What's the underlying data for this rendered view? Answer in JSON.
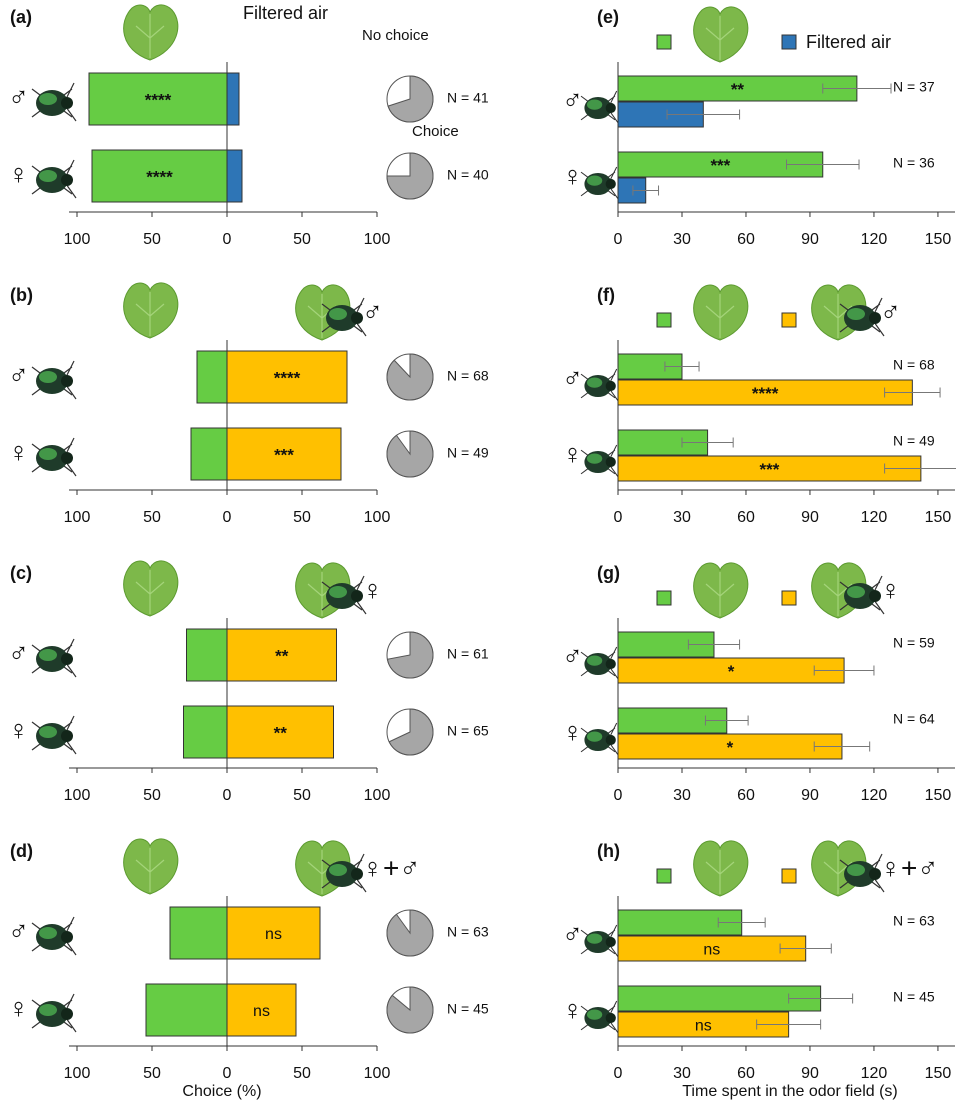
{
  "chart_data": [
    {
      "type": "diverging_bar",
      "panel_label": "(a)",
      "categories": [
        "♂",
        "♀"
      ],
      "series": [
        {
          "color": "#66cc44",
          "values": [
            92,
            90
          ],
          "annotations": [
            "****",
            "****"
          ]
        },
        {
          "name": "Filtered air",
          "color": "#2e75b6",
          "values": [
            8,
            10
          ]
        }
      ],
      "pie": {
        "labels": [
          "No choice",
          "Choice"
        ],
        "values": [
          70,
          75
        ]
      },
      "n_labels": [
        "N = 41",
        "N = 40"
      ],
      "xlim": [
        0,
        100
      ],
      "xticks": [
        0,
        50,
        100
      ],
      "left_xticks": [
        100,
        50
      ]
    },
    {
      "type": "diverging_bar",
      "panel_label": "(b)",
      "categories": [
        "♂",
        "♀"
      ],
      "series": [
        {
          "color": "#66cc44",
          "values": [
            20,
            24
          ]
        },
        {
          "name": "♂",
          "color": "#ffc000",
          "values": [
            80,
            76
          ],
          "annotations": [
            "****",
            "***"
          ]
        }
      ],
      "pie": {
        "values": [
          88,
          90
        ]
      },
      "n_labels": [
        "N = 68",
        "N = 49"
      ],
      "xlim": [
        0,
        100
      ],
      "xticks": [
        0,
        50,
        100
      ],
      "left_xticks": [
        100,
        50
      ]
    },
    {
      "type": "diverging_bar",
      "panel_label": "(c)",
      "categories": [
        "♂",
        "♀"
      ],
      "series": [
        {
          "color": "#66cc44",
          "values": [
            27,
            29
          ]
        },
        {
          "name": "♀",
          "color": "#ffc000",
          "values": [
            73,
            71
          ],
          "annotations": [
            "**",
            "**"
          ]
        }
      ],
      "pie": {
        "values": [
          72,
          68
        ]
      },
      "n_labels": [
        "N = 61",
        "N = 65"
      ],
      "xlim": [
        0,
        100
      ],
      "xticks": [
        0,
        50,
        100
      ],
      "left_xticks": [
        100,
        50
      ]
    },
    {
      "type": "diverging_bar",
      "panel_label": "(d)",
      "categories": [
        "♂",
        "♀"
      ],
      "series": [
        {
          "color": "#66cc44",
          "values": [
            38,
            54
          ]
        },
        {
          "name": "♀+♂",
          "color": "#ffc000",
          "values": [
            62,
            46
          ],
          "annotations": [
            "ns",
            "ns"
          ]
        }
      ],
      "pie": {
        "values": [
          90,
          86
        ]
      },
      "n_labels": [
        "N = 63",
        "N = 45"
      ],
      "xlim": [
        0,
        100
      ],
      "xticks": [
        0,
        50,
        100
      ],
      "left_xticks": [
        100,
        50
      ],
      "xlabel": "Choice (%)"
    },
    {
      "type": "grouped_barh",
      "panel_label": "(e)",
      "categories": [
        "♂",
        "♀"
      ],
      "series": [
        {
          "color": "#66cc44",
          "values": [
            112,
            96
          ],
          "errors": [
            16,
            17
          ],
          "annotations": [
            "**",
            "***"
          ]
        },
        {
          "name": "Filtered air",
          "color": "#2e75b6",
          "values": [
            40,
            13
          ],
          "errors": [
            17,
            6
          ]
        }
      ],
      "n_labels": [
        "N = 37",
        "N = 36"
      ],
      "xlim": [
        0,
        158
      ],
      "xticks": [
        0,
        30,
        60,
        90,
        120,
        150
      ]
    },
    {
      "type": "grouped_barh",
      "panel_label": "(f)",
      "categories": [
        "♂",
        "♀"
      ],
      "series": [
        {
          "color": "#66cc44",
          "values": [
            30,
            42
          ],
          "errors": [
            8,
            12
          ]
        },
        {
          "name": "♂",
          "color": "#ffc000",
          "values": [
            138,
            142
          ],
          "errors": [
            13,
            17
          ],
          "annotations": [
            "****",
            "***"
          ]
        }
      ],
      "n_labels": [
        "N = 68",
        "N = 49"
      ],
      "xlim": [
        0,
        158
      ],
      "xticks": [
        0,
        30,
        60,
        90,
        120,
        150
      ]
    },
    {
      "type": "grouped_barh",
      "panel_label": "(g)",
      "categories": [
        "♂",
        "♀"
      ],
      "series": [
        {
          "color": "#66cc44",
          "values": [
            45,
            51
          ],
          "errors": [
            12,
            10
          ]
        },
        {
          "name": "♀",
          "color": "#ffc000",
          "values": [
            106,
            105
          ],
          "errors": [
            14,
            13
          ],
          "annotations": [
            "*",
            "*"
          ]
        }
      ],
      "n_labels": [
        "N = 59",
        "N = 64"
      ],
      "xlim": [
        0,
        158
      ],
      "xticks": [
        0,
        30,
        60,
        90,
        120,
        150
      ]
    },
    {
      "type": "grouped_barh",
      "panel_label": "(h)",
      "categories": [
        "♂",
        "♀"
      ],
      "series": [
        {
          "color": "#66cc44",
          "values": [
            58,
            95
          ],
          "errors": [
            11,
            15
          ]
        },
        {
          "name": "♀+♂",
          "color": "#ffc000",
          "values": [
            88,
            80
          ],
          "errors": [
            12,
            15
          ],
          "annotations": [
            "ns",
            "ns"
          ]
        }
      ],
      "n_labels": [
        "N = 63",
        "N = 45"
      ],
      "xlim": [
        0,
        158
      ],
      "xticks": [
        0,
        30,
        60,
        90,
        120,
        150
      ],
      "xlabel": "Time spent in the odor field (s)"
    }
  ]
}
